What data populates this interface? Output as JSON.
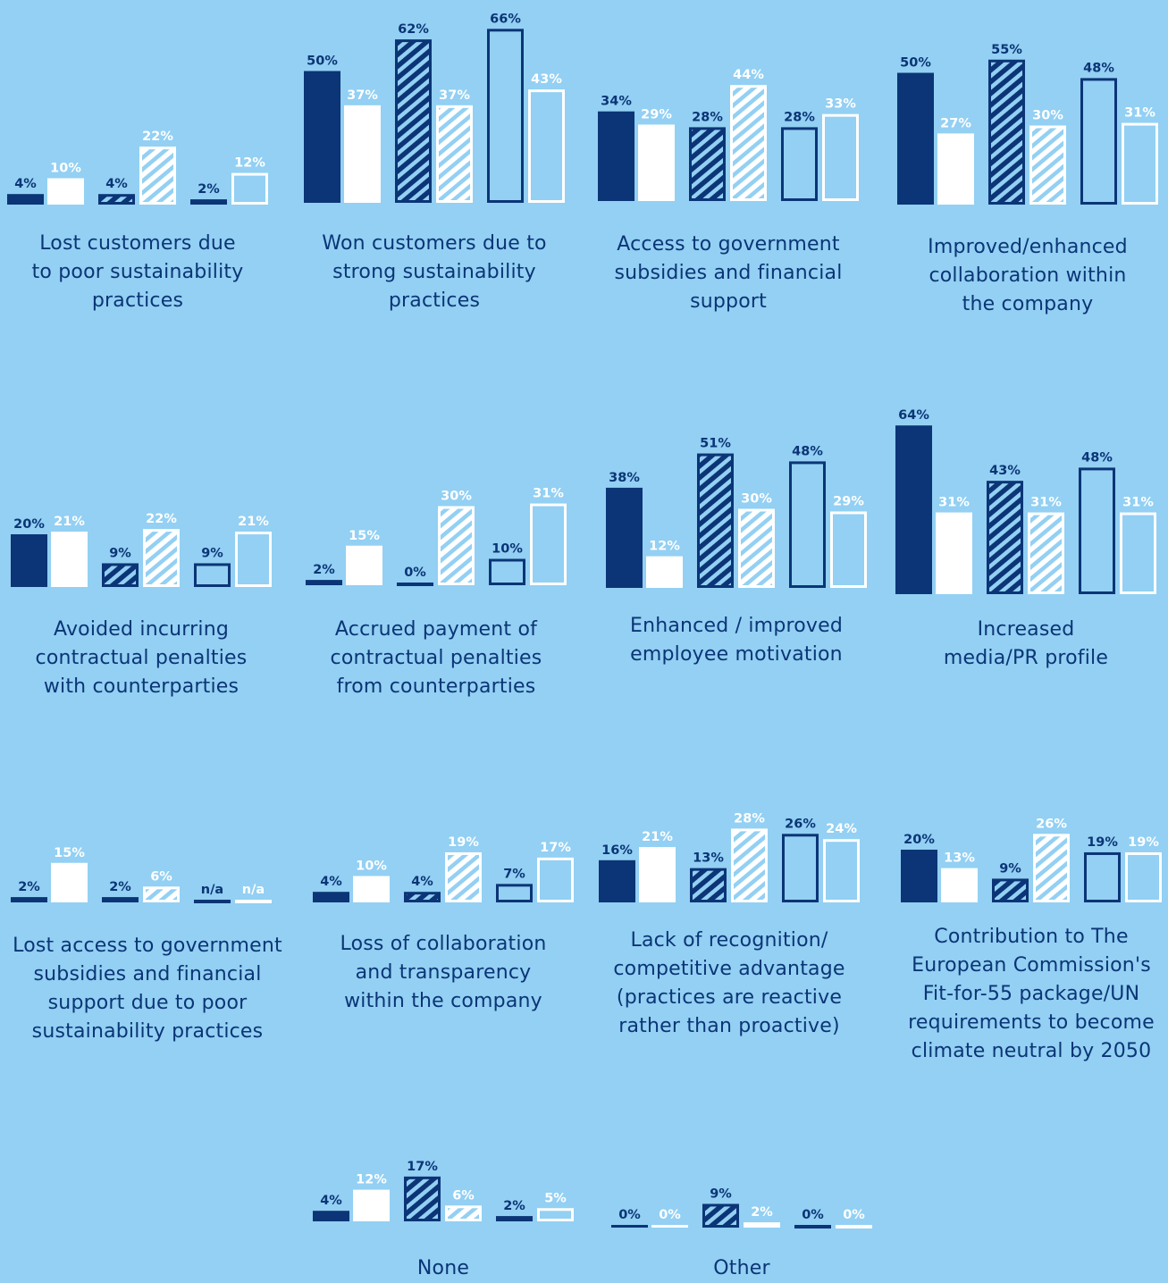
{
  "colors": {
    "background": "#93d0f3",
    "navy": "#0b3576",
    "white": "#ffffff"
  },
  "chart_data": [
    {
      "type": "bar",
      "title": "Lost customers due\nto poor sustainability\npractices",
      "values": [
        "4%",
        "10%",
        "4%",
        "22%",
        "2%",
        "12%"
      ]
    },
    {
      "type": "bar",
      "title": "Won customers due to\nstrong sustainability\npractices",
      "values": [
        "50%",
        "37%",
        "62%",
        "37%",
        "66%",
        "43%"
      ]
    },
    {
      "type": "bar",
      "title": "Access to government\nsubsidies and financial\nsupport",
      "values": [
        "34%",
        "29%",
        "28%",
        "44%",
        "28%",
        "33%"
      ]
    },
    {
      "type": "bar",
      "title": "Improved/enhanced\ncollaboration within\nthe company",
      "values": [
        "50%",
        "27%",
        "55%",
        "30%",
        "48%",
        "31%"
      ]
    },
    {
      "type": "bar",
      "title": "Avoided incurring\ncontractual penalties\nwith counterparties",
      "values": [
        "20%",
        "21%",
        "9%",
        "22%",
        "9%",
        "21%"
      ]
    },
    {
      "type": "bar",
      "title": "Accrued payment of\ncontractual penalties\nfrom counterparties",
      "values": [
        "2%",
        "15%",
        "0%",
        "30%",
        "10%",
        "31%"
      ]
    },
    {
      "type": "bar",
      "title": "Enhanced / improved\nemployee motivation",
      "values": [
        "38%",
        "12%",
        "51%",
        "30%",
        "48%",
        "29%"
      ]
    },
    {
      "type": "bar",
      "title": "Increased\nmedia/PR profile",
      "values": [
        "64%",
        "31%",
        "43%",
        "31%",
        "48%",
        "31%"
      ]
    },
    {
      "type": "bar",
      "title": "Lost access to government\nsubsidies and financial\nsupport due to poor\nsustainability practices",
      "values": [
        "2%",
        "15%",
        "2%",
        "6%",
        "n/a",
        "n/a"
      ]
    },
    {
      "type": "bar",
      "title": "Loss of collaboration\nand transparency\nwithin the company",
      "values": [
        "4%",
        "10%",
        "4%",
        "19%",
        "7%",
        "17%"
      ]
    },
    {
      "type": "bar",
      "title": "Lack of recognition/\ncompetitive advantage\n(practices are reactive\nrather than proactive)",
      "values": [
        "16%",
        "21%",
        "13%",
        "28%",
        "26%",
        "24%"
      ]
    },
    {
      "type": "bar",
      "title": "Contribution to The\nEuropean Commission's\nFit-for-55 package/UN\nrequirements to become\nclimate neutral by 2050",
      "values": [
        "20%",
        "13%",
        "9%",
        "26%",
        "19%",
        "19%"
      ]
    },
    {
      "type": "bar",
      "title": "None",
      "values": [
        "4%",
        "12%",
        "17%",
        "6%",
        "2%",
        "5%"
      ]
    },
    {
      "type": "bar",
      "title": "Other",
      "values": [
        "0%",
        "0%",
        "9%",
        "2%",
        "0%",
        "0%"
      ]
    }
  ]
}
